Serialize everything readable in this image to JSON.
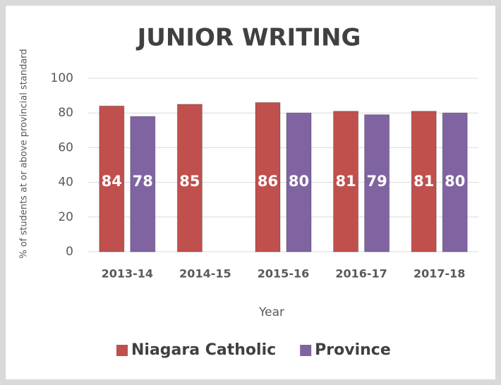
{
  "chart_data": {
    "type": "bar",
    "title": "JUNIOR WRITING",
    "x_label": "Year",
    "y_label": "% of students at or above provincial standard",
    "categories": [
      "2013-14",
      "2014-15",
      "2015-16",
      "2016-17",
      "2017-18"
    ],
    "series": [
      {
        "name": "Niagara Catholic",
        "color": "#c0504d",
        "values": [
          84,
          85,
          86,
          81,
          81
        ]
      },
      {
        "name": "Province",
        "color": "#8064a2",
        "values": [
          78,
          null,
          80,
          79,
          80
        ]
      }
    ],
    "ylim": [
      0,
      100
    ],
    "yticks": [
      0,
      20,
      40,
      60,
      80,
      100
    ],
    "grid": true,
    "legend": "bottom"
  }
}
